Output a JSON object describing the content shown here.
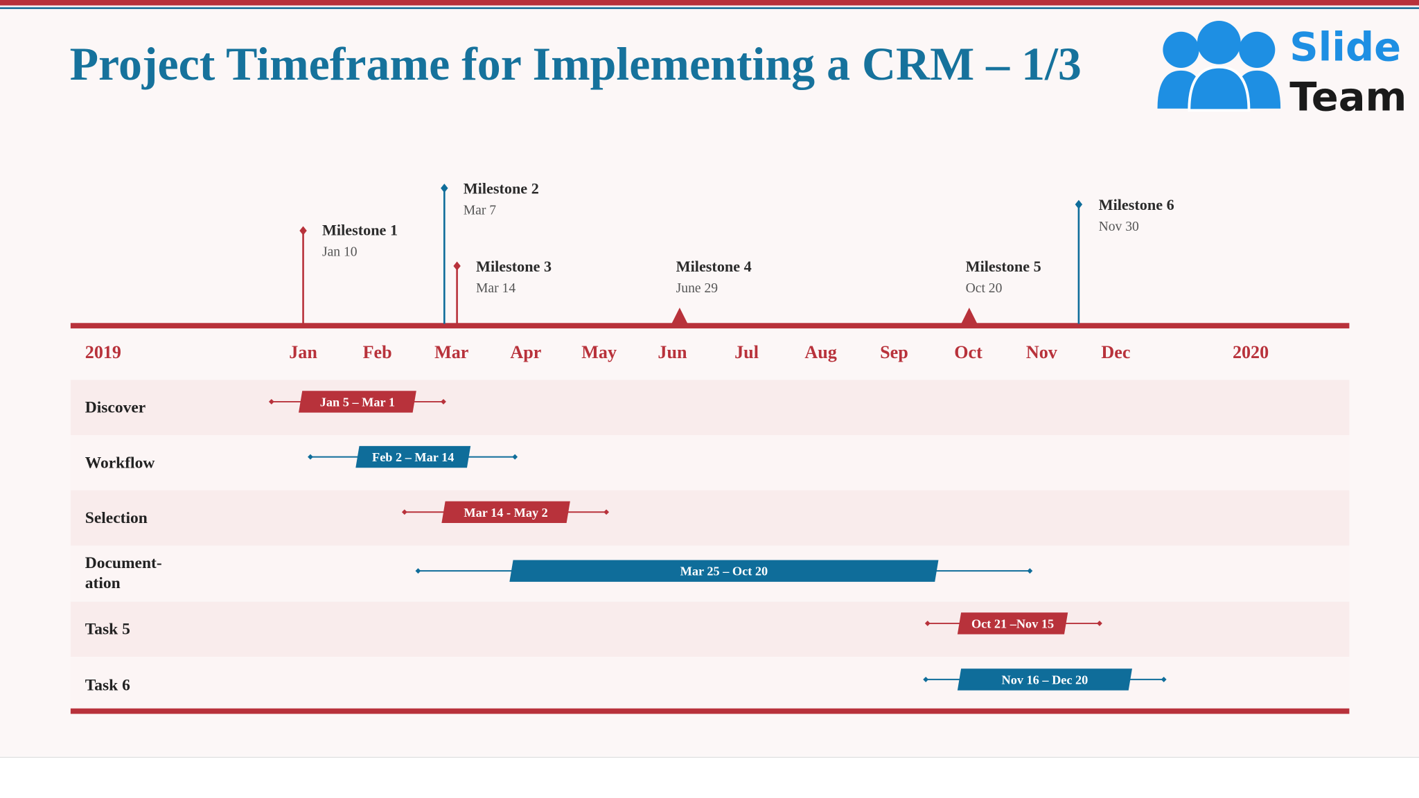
{
  "header": {
    "title": "Project Timeframe for Implementing a CRM – 1/3"
  },
  "logo": {
    "line1": "Slide",
    "line2": "Team"
  },
  "timeline": {
    "labels": [
      "2019",
      "Jan",
      "Feb",
      "Mar",
      "Apr",
      "May",
      "Jun",
      "Jul",
      "Aug",
      "Sep",
      "Oct",
      "Nov",
      "Dec",
      "2020"
    ]
  },
  "milestones": [
    {
      "name": "Milestone 1",
      "date": "Jan 10"
    },
    {
      "name": "Milestone 2",
      "date": "Mar 7"
    },
    {
      "name": "Milestone 3",
      "date": "Mar 14"
    },
    {
      "name": "Milestone 4",
      "date": "June 29"
    },
    {
      "name": "Milestone 5",
      "date": "Oct 20"
    },
    {
      "name": "Milestone 6",
      "date": "Nov 30"
    }
  ],
  "tasks": [
    {
      "name": [
        "Discover"
      ],
      "dates": "Jan 5 – Mar 1"
    },
    {
      "name": [
        "Workflow"
      ],
      "dates": "Feb 2 – Mar 14"
    },
    {
      "name": [
        "Selection"
      ],
      "dates": "Mar 14 - May 2"
    },
    {
      "name": [
        "Document-",
        "ation"
      ],
      "dates": "Mar 25 – Oct 20"
    },
    {
      "name": [
        "Task 5"
      ],
      "dates": "Oct 21 –Nov 15"
    },
    {
      "name": [
        "Task 6"
      ],
      "dates": "Nov 16 – Dec 20"
    }
  ]
}
